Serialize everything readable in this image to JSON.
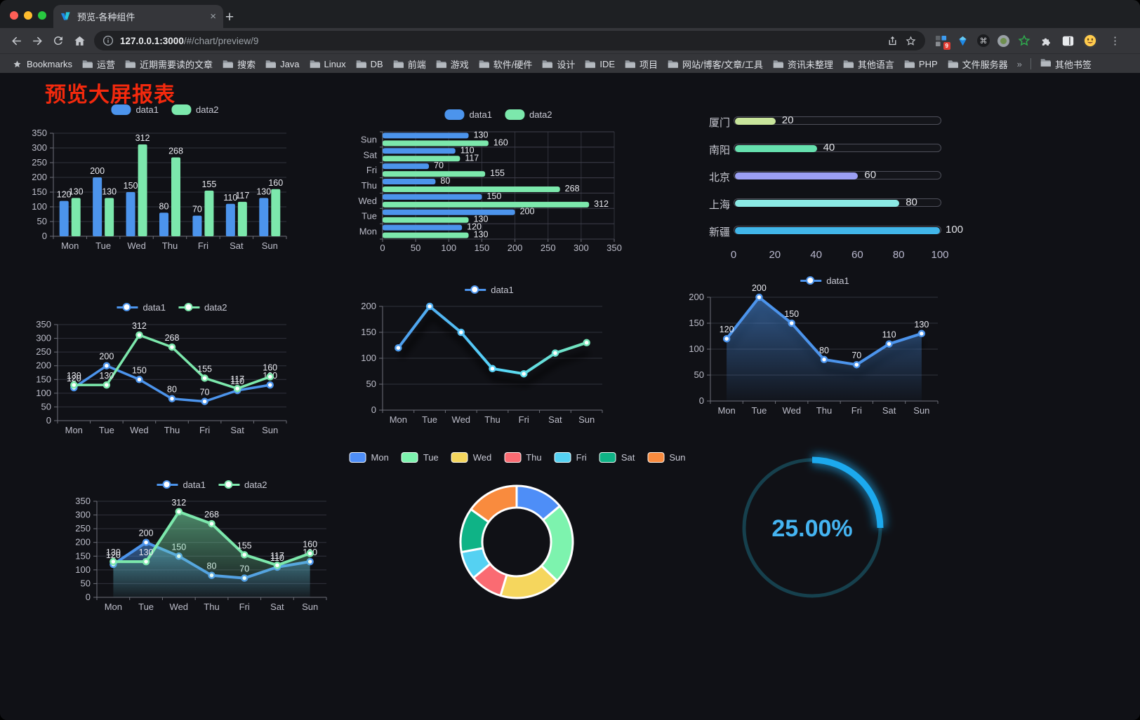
{
  "browser": {
    "tab_title": "预览-各种组件",
    "tab_close": "×",
    "new_tab": "+",
    "url_host": "127.0.0.1:3000",
    "url_path": "/#/chart/preview/9",
    "extension_badge": "9",
    "cmd_glyph": "⌘",
    "menu_dots": "⋮",
    "bookmarks_label": "Bookmarks",
    "folders": [
      "运营",
      "近期需要读的文章",
      "搜索",
      "Java",
      "Linux",
      "DB",
      "前端",
      "游戏",
      "软件/硬件",
      "设计",
      "IDE",
      "项目",
      "网站/博客/文章/工具",
      "资讯未整理",
      "其他语言",
      "PHP",
      "文件服务器"
    ],
    "overflow": "»",
    "other_bookmarks": "其他书签"
  },
  "page": {
    "title": "预览大屏报表"
  },
  "chart_data": [
    {
      "id": "bar-vertical",
      "type": "bar",
      "categories": [
        "Mon",
        "Tue",
        "Wed",
        "Thu",
        "Fri",
        "Sat",
        "Sun"
      ],
      "series": [
        {
          "name": "data1",
          "color": "#4C94EC",
          "values": [
            120,
            200,
            150,
            80,
            70,
            110,
            130
          ]
        },
        {
          "name": "data2",
          "color": "#7CE8AC",
          "values": [
            130,
            130,
            312,
            268,
            155,
            117,
            160
          ]
        }
      ],
      "ylim": [
        0,
        350
      ],
      "ytick": 50,
      "legend_position": "top",
      "value_labels": true,
      "grid": true
    },
    {
      "id": "bar-horizontal",
      "type": "bar-horizontal",
      "categories": [
        "Mon",
        "Tue",
        "Wed",
        "Thu",
        "Fri",
        "Sat",
        "Sun"
      ],
      "series": [
        {
          "name": "data1",
          "color": "#4C94EC",
          "values": [
            120,
            200,
            150,
            80,
            70,
            110,
            130
          ]
        },
        {
          "name": "data2",
          "color": "#7CE8AC",
          "values": [
            130,
            130,
            312,
            268,
            155,
            117,
            160
          ]
        }
      ],
      "xlim": [
        0,
        350
      ],
      "xtick": 50,
      "legend_position": "top",
      "value_labels": true,
      "grid": true
    },
    {
      "id": "progress",
      "type": "progress-bar",
      "max": 100,
      "axis_ticks": [
        0,
        20,
        40,
        60,
        80,
        100
      ],
      "items": [
        {
          "label": "厦门",
          "value": 20,
          "color": "#C8E59B"
        },
        {
          "label": "南阳",
          "value": 40,
          "color": "#66E0AE"
        },
        {
          "label": "北京",
          "value": 60,
          "color": "#9B9FF3"
        },
        {
          "label": "上海",
          "value": 80,
          "color": "#8BE9E4"
        },
        {
          "label": "新疆",
          "value": 100,
          "color": "#41B6E9"
        }
      ]
    },
    {
      "id": "line-dual",
      "type": "line",
      "categories": [
        "Mon",
        "Tue",
        "Wed",
        "Thu",
        "Fri",
        "Sat",
        "Sun"
      ],
      "series": [
        {
          "name": "data1",
          "color": "#4C94EC",
          "values": [
            120,
            200,
            150,
            80,
            70,
            110,
            130
          ]
        },
        {
          "name": "data2",
          "color": "#7CE8AC",
          "values": [
            130,
            130,
            312,
            268,
            155,
            117,
            160
          ]
        }
      ],
      "ylim": [
        0,
        350
      ],
      "ytick": 50,
      "legend_position": "top",
      "value_labels": true,
      "grid": true
    },
    {
      "id": "line-gradient",
      "type": "line",
      "categories": [
        "Mon",
        "Tue",
        "Wed",
        "Thu",
        "Fri",
        "Sat",
        "Sun"
      ],
      "series": [
        {
          "name": "data1",
          "color": "#4C94EC",
          "gradient": [
            "#4C94EC",
            "#58D9F9",
            "#7CE8AC"
          ],
          "values": [
            120,
            200,
            150,
            80,
            70,
            110,
            130
          ]
        }
      ],
      "ylim": [
        0,
        200
      ],
      "ytick": 50,
      "legend_position": "top",
      "value_labels": false,
      "grid": true
    },
    {
      "id": "area-single",
      "type": "area",
      "categories": [
        "Mon",
        "Tue",
        "Wed",
        "Thu",
        "Fri",
        "Sat",
        "Sun"
      ],
      "series": [
        {
          "name": "data1",
          "color": "#4C94EC",
          "values": [
            120,
            200,
            150,
            80,
            70,
            110,
            130
          ]
        }
      ],
      "ylim": [
        0,
        200
      ],
      "ytick": 50,
      "legend_position": "top",
      "value_labels": true,
      "grid": true
    },
    {
      "id": "area-dual",
      "type": "area",
      "categories": [
        "Mon",
        "Tue",
        "Wed",
        "Thu",
        "Fri",
        "Sat",
        "Sun"
      ],
      "series": [
        {
          "name": "data1",
          "color": "#4C94EC",
          "values": [
            120,
            200,
            150,
            80,
            70,
            110,
            130
          ]
        },
        {
          "name": "data2",
          "color": "#7CE8AC",
          "values": [
            130,
            130,
            312,
            268,
            155,
            117,
            160
          ]
        }
      ],
      "ylim": [
        0,
        350
      ],
      "ytick": 50,
      "legend_position": "top",
      "value_labels": true,
      "grid": true
    },
    {
      "id": "donut",
      "type": "pie",
      "legend_position": "top",
      "items": [
        {
          "label": "Mon",
          "value": 120,
          "color": "#4E8EF7"
        },
        {
          "label": "Tue",
          "value": 200,
          "color": "#7DF3AE"
        },
        {
          "label": "Wed",
          "value": 150,
          "color": "#F5D65D"
        },
        {
          "label": "Thu",
          "value": 80,
          "color": "#FA6B72"
        },
        {
          "label": "Fri",
          "value": 70,
          "color": "#55D1F2"
        },
        {
          "label": "Sat",
          "value": 110,
          "color": "#0FB386"
        },
        {
          "label": "Sun",
          "value": 130,
          "color": "#F98B3E"
        }
      ]
    },
    {
      "id": "gauge",
      "type": "gauge",
      "value": 25,
      "max": 100,
      "label": "25.00%",
      "color": "#1CA9EE",
      "track_color": "#16404D",
      "text_color": "#45B4F1"
    }
  ]
}
